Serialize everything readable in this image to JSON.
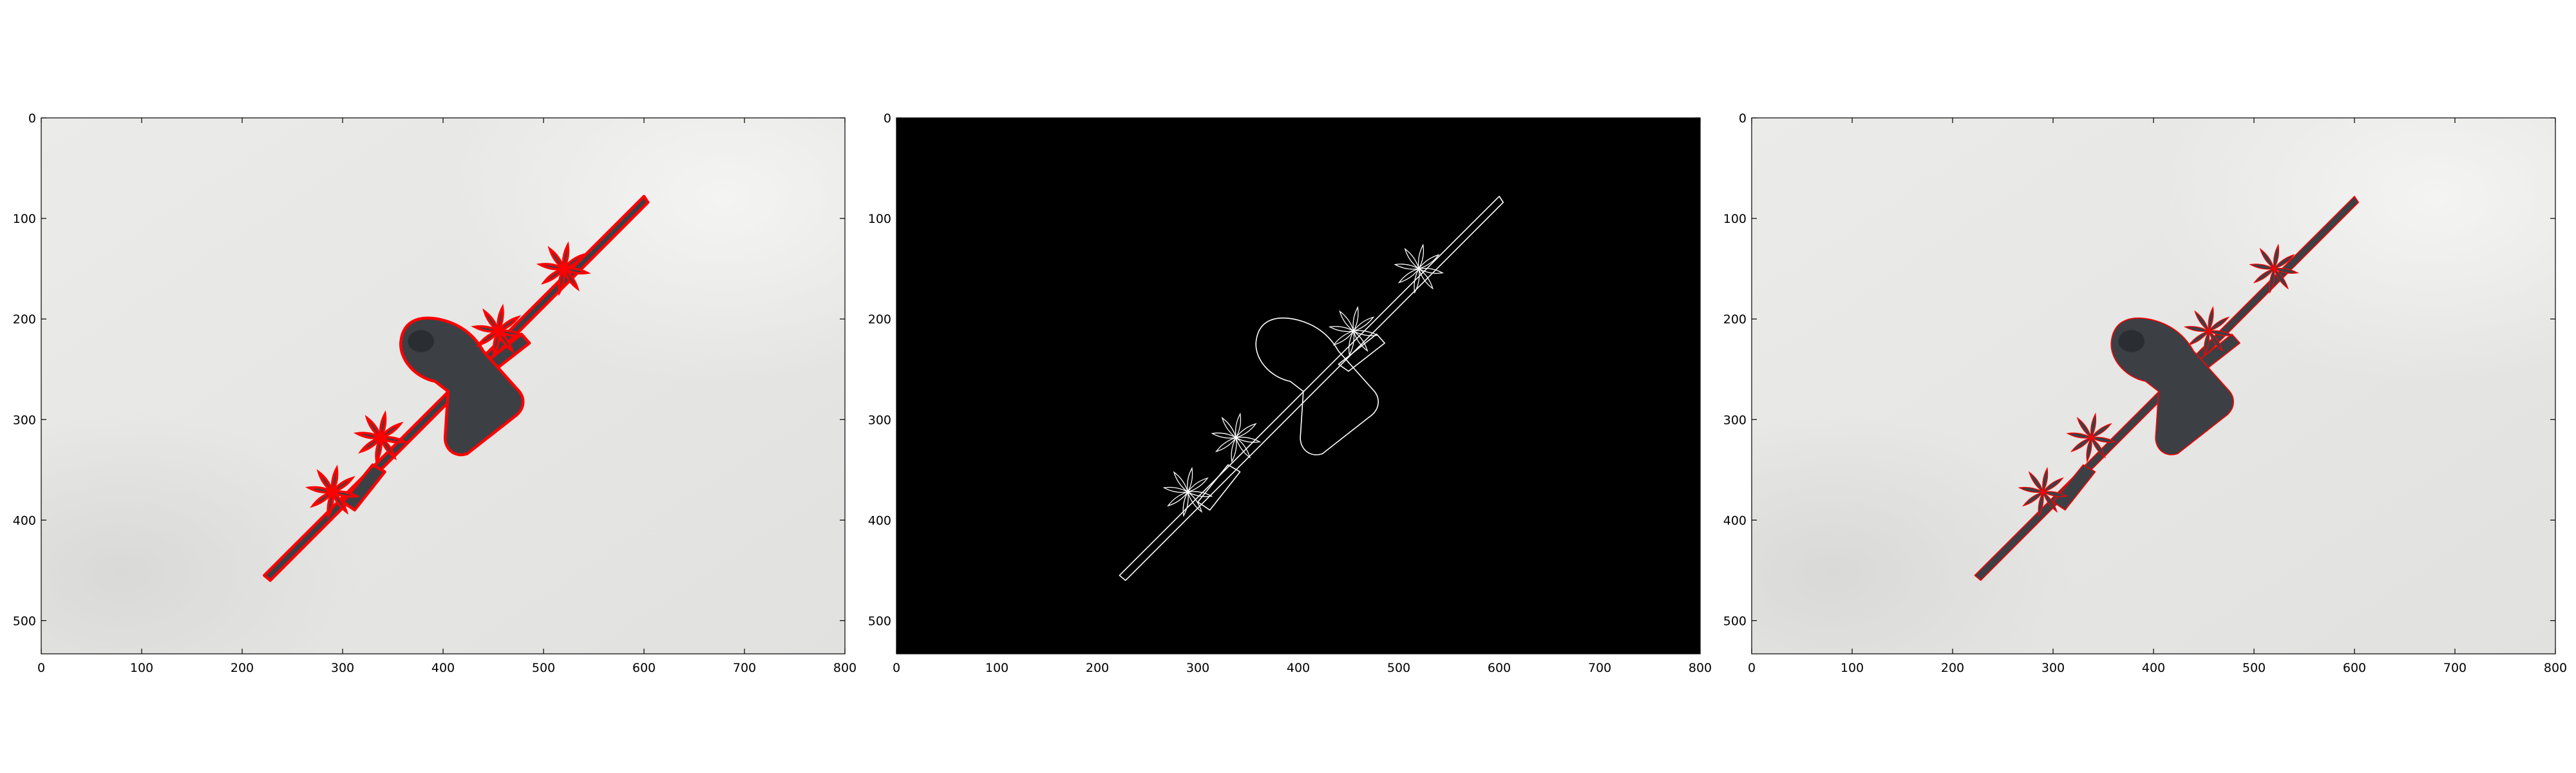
{
  "figure": {
    "panels": [
      {
        "name": "overlay-panel",
        "background": "photo",
        "outline_color": "#ff0000",
        "outline_style": "thick"
      },
      {
        "name": "contour-mask-panel",
        "background": "#000000",
        "outline_color": "#ffffff",
        "outline_style": "thin"
      },
      {
        "name": "smooth-overlay-panel",
        "background": "photo",
        "outline_color": "#ff0000",
        "outline_style": "thin"
      }
    ],
    "x_ticks": [
      "0",
      "100",
      "200",
      "300",
      "400",
      "500",
      "600",
      "700",
      "800"
    ],
    "y_ticks": [
      "0",
      "100",
      "200",
      "300",
      "400",
      "500"
    ],
    "axis_range": {
      "x": [
        0,
        800
      ],
      "y": [
        0,
        533
      ]
    }
  },
  "colors": {
    "sky": "#e9e9e7",
    "aircraft": "#3c4045",
    "outline_red": "#ff0000",
    "outline_white": "#ffffff",
    "mask_bg": "#000000"
  }
}
